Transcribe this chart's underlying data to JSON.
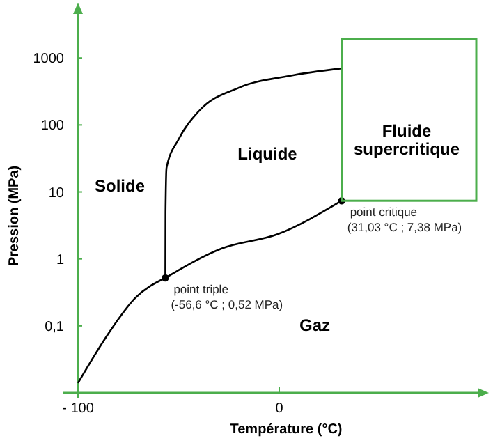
{
  "chart_data": {
    "type": "line",
    "xlabel": "Température (°C)",
    "ylabel": "Pression (MPa)",
    "log": "y",
    "grid": false,
    "xlim": [
      -100,
      100
    ],
    "ylim": [
      0.01,
      5000
    ],
    "xticks": [
      {
        "value": -100,
        "label": "- 100"
      },
      0
    ],
    "yticks": [
      {
        "value": 0.1,
        "label": "0,1"
      },
      1,
      10,
      100,
      1000
    ],
    "series": [
      {
        "color": "#000000",
        "x": [
          -100,
          -84.5,
          -71.6,
          -56.6
        ],
        "values": [
          0.014,
          0.08,
          0.26,
          0.52
        ]
      },
      {
        "color": "#000000",
        "x": [
          -56.6,
          -28.6,
          -0.6,
          31.03
        ],
        "values": [
          0.52,
          1.43,
          2.35,
          7.38
        ]
      },
      {
        "color": "#000000",
        "x": [
          -56.6,
          -56.5,
          -56,
          -50,
          -40,
          -20,
          5,
          31.03
        ],
        "values": [
          0.52,
          5,
          23,
          61,
          160,
          360,
          540,
          700
        ]
      },
      {
        "type": "scatter",
        "color": "#000000",
        "marker": "circle",
        "x": [
          -56.6,
          31.03
        ],
        "values": [
          0.52,
          7.38
        ]
      }
    ],
    "annotations": [
      "Solide",
      "Liquide",
      "Gaz",
      "Fluide\nsupercritique",
      {
        "text": "point triple\n(-56,6 °C ; 0,52 MPa)",
        "x": -56.6,
        "y": 0.52
      },
      {
        "text": "point critique\n(31,03 °C ; 7,38 MPa)",
        "x": 31.03,
        "y": 7.38
      }
    ]
  }
}
